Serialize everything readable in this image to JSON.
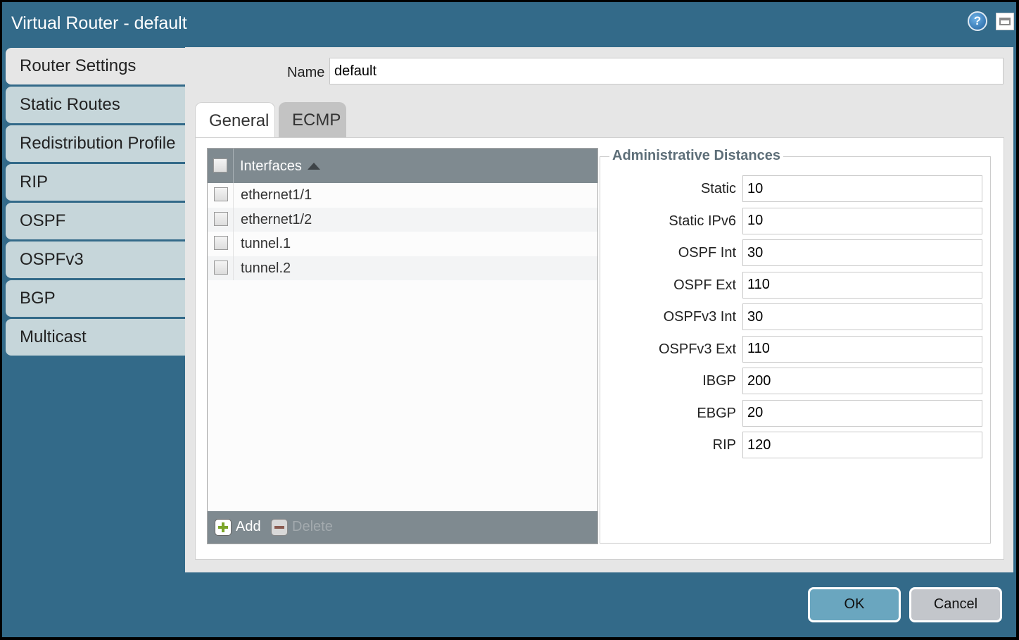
{
  "window": {
    "title": "Virtual Router - default",
    "help_icon": "help-icon",
    "maximize_icon": "maximize-icon"
  },
  "sidebar": {
    "items": [
      {
        "label": "Router Settings",
        "active": true
      },
      {
        "label": "Static Routes"
      },
      {
        "label": "Redistribution Profile"
      },
      {
        "label": "RIP"
      },
      {
        "label": "OSPF"
      },
      {
        "label": "OSPFv3"
      },
      {
        "label": "BGP"
      },
      {
        "label": "Multicast"
      }
    ]
  },
  "name_field": {
    "label": "Name",
    "value": "default"
  },
  "tabs": [
    {
      "label": "General",
      "active": true
    },
    {
      "label": "ECMP"
    }
  ],
  "interfaces": {
    "header": "Interfaces",
    "sort": "ascending",
    "rows": [
      "ethernet1/1",
      "ethernet1/2",
      "tunnel.1",
      "tunnel.2"
    ],
    "add_label": "Add",
    "delete_label": "Delete"
  },
  "admin": {
    "legend": "Administrative Distances",
    "fields": [
      {
        "label": "Static",
        "value": "10"
      },
      {
        "label": "Static IPv6",
        "value": "10"
      },
      {
        "label": "OSPF Int",
        "value": "30"
      },
      {
        "label": "OSPF Ext",
        "value": "110"
      },
      {
        "label": "OSPFv3 Int",
        "value": "30"
      },
      {
        "label": "OSPFv3 Ext",
        "value": "110"
      },
      {
        "label": "IBGP",
        "value": "200"
      },
      {
        "label": "EBGP",
        "value": "20"
      },
      {
        "label": "RIP",
        "value": "120"
      }
    ]
  },
  "buttons": {
    "ok": "OK",
    "cancel": "Cancel"
  },
  "colors": {
    "titlebar": "#336a89",
    "ok": "#6aa6bf",
    "cancel": "#c3c6cb"
  }
}
